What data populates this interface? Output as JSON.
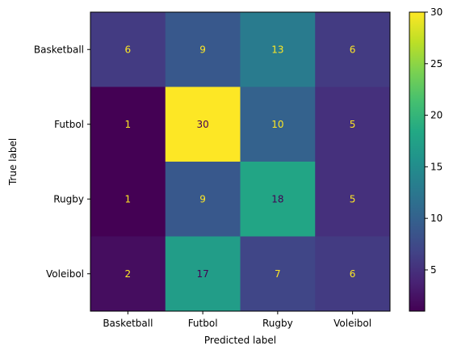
{
  "chart_data": {
    "type": "heatmap",
    "title": "",
    "xlabel": "Predicted label",
    "ylabel": "True label",
    "x_categories": [
      "Basketball",
      "Futbol",
      "Rugby",
      "Voleibol"
    ],
    "y_categories": [
      "Basketball",
      "Futbol",
      "Rugby",
      "Voleibol"
    ],
    "values": [
      [
        6,
        9,
        13,
        6
      ],
      [
        1,
        30,
        10,
        5
      ],
      [
        1,
        9,
        18,
        5
      ],
      [
        2,
        17,
        7,
        6
      ]
    ],
    "colorbar": {
      "min": 1,
      "max": 30,
      "ticks": [
        5,
        10,
        15,
        20,
        25,
        30
      ],
      "colormap": "viridis"
    }
  }
}
